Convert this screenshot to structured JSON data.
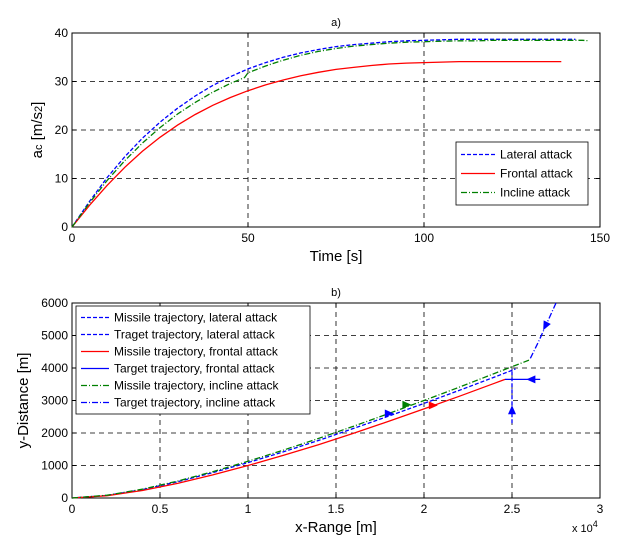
{
  "colors": {
    "blue": "#0000ff",
    "red": "#ff0000",
    "green": "#008000"
  },
  "chart_data": [
    {
      "type": "line",
      "title": "a)",
      "xlabel": "Time [s]",
      "ylabel_main": "a",
      "ylabel_sub": "c",
      "ylabel_rest": " [m/s",
      "ylabel_sup": "2",
      "ylabel_end": "]",
      "xlim": [
        0,
        150
      ],
      "ylim": [
        0,
        40
      ],
      "xticks": [
        "0",
        "50",
        "100",
        "150"
      ],
      "yticks": [
        "0",
        "10",
        "20",
        "30",
        "40"
      ],
      "grid": true,
      "legend_position": "right",
      "series": [
        {
          "name": "Lateral attack",
          "color": "#0000ff",
          "dash": "4,2",
          "x": [
            0,
            5,
            10,
            15,
            20,
            25,
            30,
            35,
            40,
            45,
            50,
            55,
            60,
            65,
            70,
            75,
            80,
            85,
            90,
            95,
            100,
            105,
            110,
            115,
            120,
            125,
            130,
            135,
            140,
            143
          ],
          "y": [
            0,
            5.3,
            10.2,
            14.5,
            18.3,
            21.6,
            24.5,
            27.0,
            29.2,
            31.0,
            32.6,
            33.9,
            35.0,
            35.9,
            36.6,
            37.2,
            37.6,
            37.9,
            38.2,
            38.4,
            38.5,
            38.6,
            38.7,
            38.7,
            38.7,
            38.7,
            38.7,
            38.7,
            38.7,
            38.7
          ]
        },
        {
          "name": "Frontal attack",
          "color": "#ff0000",
          "dash": "",
          "x": [
            0,
            5,
            10,
            15,
            20,
            25,
            30,
            35,
            40,
            45,
            50,
            55,
            60,
            65,
            70,
            75,
            80,
            85,
            90,
            95,
            100,
            105,
            110,
            115,
            120,
            125,
            130,
            135,
            139
          ],
          "y": [
            0,
            4.5,
            8.6,
            12.3,
            15.6,
            18.5,
            21.0,
            23.2,
            25.1,
            26.7,
            28.1,
            29.3,
            30.3,
            31.2,
            31.9,
            32.5,
            32.9,
            33.3,
            33.6,
            33.8,
            33.9,
            34.0,
            34.1,
            34.1,
            34.1,
            34.1,
            34.1,
            34.1,
            34.1
          ]
        },
        {
          "name": "Incline attack",
          "color": "#008000",
          "dash": "6,2,1,2",
          "x": [
            0,
            5,
            10,
            15,
            20,
            25,
            30,
            35,
            40,
            45,
            49,
            50,
            55,
            60,
            65,
            70,
            75,
            80,
            85,
            90,
            95,
            100,
            105,
            110,
            115,
            120,
            125,
            130,
            135,
            140,
            145,
            147
          ],
          "y": [
            0,
            5.0,
            9.6,
            13.7,
            17.3,
            20.5,
            23.3,
            25.7,
            27.8,
            29.6,
            30.8,
            31.8,
            33.2,
            34.4,
            35.4,
            36.2,
            36.8,
            37.3,
            37.6,
            37.9,
            38.1,
            38.2,
            38.3,
            38.4,
            38.4,
            38.5,
            38.5,
            38.5,
            38.5,
            38.5,
            38.5,
            38.4
          ]
        }
      ]
    },
    {
      "type": "line",
      "title": "b)",
      "xlabel": "x-Range [m]",
      "ylabel": "y-Distance [m]",
      "xlim": [
        0,
        30000
      ],
      "ylim": [
        0,
        6000
      ],
      "xticks": [
        "0",
        "0.5",
        "1",
        "1.5",
        "2",
        "2.5",
        "3"
      ],
      "yticks": [
        "0",
        "1000",
        "2000",
        "3000",
        "4000",
        "5000",
        "6000"
      ],
      "x_multiplier": "x 10",
      "x_multiplier_exp": "4",
      "grid": true,
      "legend_position": "top-left",
      "series": [
        {
          "name": "Missile trajectory, lateral attack",
          "color": "#0000ff",
          "dash": "4,2",
          "x": [
            0,
            2000,
            4000,
            6000,
            8000,
            10000,
            12000,
            14000,
            16000,
            18000,
            20000,
            22000,
            24000,
            25200
          ],
          "y": [
            0,
            80,
            260,
            500,
            780,
            1090,
            1420,
            1770,
            2140,
            2520,
            2910,
            3310,
            3720,
            3970
          ]
        },
        {
          "name": "Traget trajectory, lateral attack",
          "color": "#0000ff",
          "dash": "4,2",
          "x": [
            25000,
            25000,
            25000
          ],
          "y": [
            2300,
            3100,
            3970
          ]
        },
        {
          "name": "Missile trajectory, frontal attack",
          "color": "#ff0000",
          "dash": "",
          "x": [
            0,
            2000,
            4000,
            6000,
            8000,
            10000,
            12000,
            14000,
            16000,
            18000,
            20000,
            22000,
            24000,
            24600
          ],
          "y": [
            0,
            70,
            230,
            450,
            710,
            1000,
            1310,
            1640,
            1990,
            2360,
            2740,
            3130,
            3530,
            3650
          ]
        },
        {
          "name": "Target trajectory, frontal attack",
          "color": "#0000ff",
          "dash": "",
          "x": [
            26600,
            25600,
            24600
          ],
          "y": [
            3650,
            3650,
            3650
          ]
        },
        {
          "name": "Missile trajectory, incline attack",
          "color": "#008000",
          "dash": "6,2,1,2",
          "x": [
            0,
            2000,
            4000,
            6000,
            8000,
            10000,
            12000,
            14000,
            16000,
            18000,
            20000,
            22000,
            24000,
            26000
          ],
          "y": [
            0,
            85,
            270,
            520,
            810,
            1130,
            1470,
            1830,
            2210,
            2600,
            3000,
            3410,
            3830,
            4250
          ]
        },
        {
          "name": "Target trajectory, incline attack",
          "color": "#0000ff",
          "dash": "6,2,1,2",
          "x": [
            27500,
            27000,
            26500,
            26000
          ],
          "y": [
            6000,
            5400,
            4800,
            4250
          ]
        }
      ],
      "arrows": [
        {
          "x": 18000,
          "y": 2600,
          "dir": "right",
          "color": "#0000ff"
        },
        {
          "x": 19000,
          "y": 2870,
          "dir": "right",
          "color": "#008000"
        },
        {
          "x": 20500,
          "y": 2850,
          "dir": "right",
          "color": "#ff0000"
        },
        {
          "x": 25000,
          "y": 2700,
          "dir": "up",
          "color": "#0000ff"
        },
        {
          "x": 26100,
          "y": 3650,
          "dir": "left",
          "color": "#0000ff"
        },
        {
          "x": 26900,
          "y": 5300,
          "dir": "down-left",
          "color": "#0000ff"
        }
      ]
    }
  ]
}
